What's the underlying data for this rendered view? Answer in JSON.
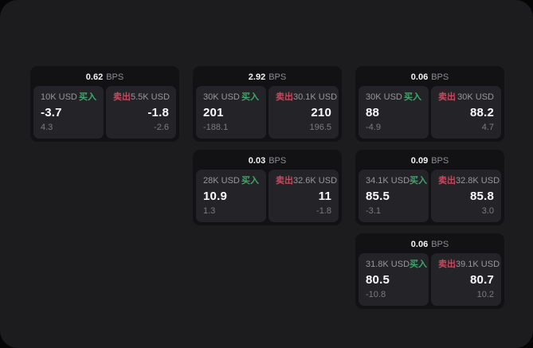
{
  "labels": {
    "bps_suffix": "BPS",
    "buy": "买入",
    "sell": "卖出"
  },
  "colors": {
    "window_bg": "#1c1c1e",
    "card_bg": "#121214",
    "panel_bg": "#242428",
    "text_primary": "#fcfcfe",
    "text_secondary": "#97979c",
    "text_tertiary": "#7b7b80",
    "buy_green": "#3fa76a",
    "sell_red": "#c8485f"
  },
  "cards": [
    {
      "bps": "0.62",
      "buy": {
        "amount": "10K USD",
        "value": "-3.7",
        "sub": "4.3"
      },
      "sell": {
        "amount": "5.5K USD",
        "value": "-1.8",
        "sub": "-2.6"
      }
    },
    {
      "bps": "2.92",
      "buy": {
        "amount": "30K USD",
        "value": "201",
        "sub": "-188.1"
      },
      "sell": {
        "amount": "30.1K USD",
        "value": "210",
        "sub": "196.5"
      }
    },
    {
      "bps": "0.06",
      "buy": {
        "amount": "30K USD",
        "value": "88",
        "sub": "-4.9"
      },
      "sell": {
        "amount": "30K USD",
        "value": "88.2",
        "sub": "4.7"
      }
    },
    {
      "bps": "0.03",
      "buy": {
        "amount": "28K USD",
        "value": "10.9",
        "sub": "1.3"
      },
      "sell": {
        "amount": "32.6K USD",
        "value": "11",
        "sub": "-1.8"
      }
    },
    {
      "bps": "0.09",
      "buy": {
        "amount": "34.1K USD",
        "value": "85.5",
        "sub": "-3.1"
      },
      "sell": {
        "amount": "32.8K USD",
        "value": "85.8",
        "sub": "3.0"
      }
    },
    {
      "bps": "0.06",
      "buy": {
        "amount": "31.8K USD",
        "value": "80.5",
        "sub": "-10.8"
      },
      "sell": {
        "amount": "39.1K USD",
        "value": "80.7",
        "sub": "10.2"
      }
    }
  ]
}
